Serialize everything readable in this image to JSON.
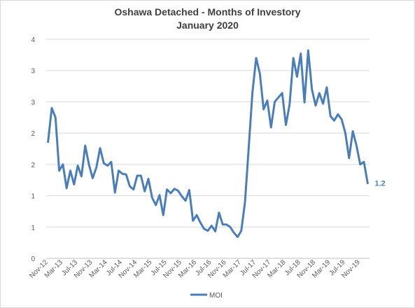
{
  "chart_data": {
    "type": "line",
    "title": "Oshawa Detached - Months of Investory",
    "subtitle": "January 2020",
    "y_tick_labels": [
      "0",
      "1",
      "1",
      "2",
      "2",
      "3",
      "3",
      "4"
    ],
    "x_tick_labels": [
      "Nov-12",
      "Mar-13",
      "Jul-13",
      "Nov-13",
      "Mar-14",
      "Jul-14",
      "Nov-14",
      "Mar-15",
      "Jul-15",
      "Nov-15",
      "Mar-16",
      "Jul-16",
      "Nov-16",
      "Mar-17",
      "Jul-17",
      "Nov-17",
      "Mar-18",
      "Jul-18",
      "Nov-18",
      "Mar-19",
      "Jul-19",
      "Nov-19"
    ],
    "ylim": [
      0,
      3.5
    ],
    "grid": true,
    "legend_position": "bottom",
    "series": [
      {
        "name": "MOI",
        "color": "#4a7ebb",
        "values": [
          1.86,
          2.4,
          2.25,
          1.4,
          1.5,
          1.12,
          1.4,
          1.18,
          1.48,
          1.31,
          1.8,
          1.5,
          1.28,
          1.45,
          1.76,
          1.52,
          1.48,
          1.54,
          1.05,
          1.4,
          1.35,
          1.34,
          1.15,
          1.1,
          1.32,
          1.32,
          1.07,
          1.27,
          0.97,
          0.85,
          1.01,
          0.69,
          1.1,
          1.04,
          1.11,
          1.08,
          0.99,
          0.92,
          1.09,
          0.6,
          0.69,
          0.57,
          0.47,
          0.44,
          0.52,
          0.43,
          0.73,
          0.54,
          0.54,
          0.5,
          0.41,
          0.34,
          0.44,
          0.9,
          1.77,
          2.65,
          3.2,
          2.95,
          2.38,
          2.52,
          2.09,
          2.5,
          2.57,
          2.64,
          2.13,
          2.46,
          3.2,
          2.9,
          3.27,
          2.49,
          3.32,
          2.7,
          2.44,
          2.64,
          2.47,
          2.73,
          2.27,
          2.2,
          2.3,
          2.22,
          2.0,
          1.6,
          2.03,
          1.8,
          1.5,
          1.54,
          1.2
        ]
      }
    ],
    "last_value_label": "1.2"
  }
}
